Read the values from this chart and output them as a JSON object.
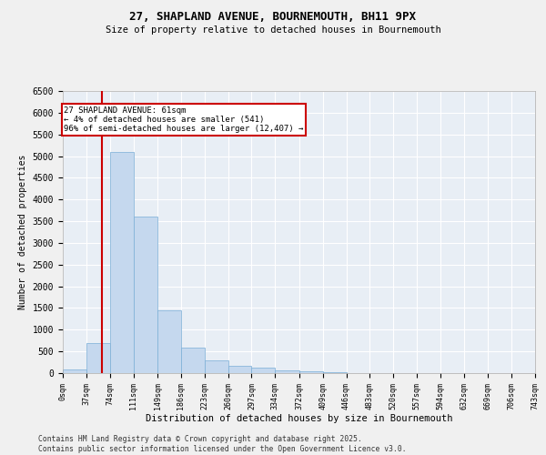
{
  "title1": "27, SHAPLAND AVENUE, BOURNEMOUTH, BH11 9PX",
  "title2": "Size of property relative to detached houses in Bournemouth",
  "xlabel": "Distribution of detached houses by size in Bournemouth",
  "ylabel": "Number of detached properties",
  "bar_color": "#c5d8ee",
  "bar_edge_color": "#7aaed6",
  "bg_color": "#e8eef5",
  "grid_color": "#ffffff",
  "annotation_box_color": "#cc0000",
  "vline_color": "#cc0000",
  "bin_edges": [
    0,
    37,
    74,
    111,
    149,
    186,
    223,
    260,
    297,
    334,
    372,
    409,
    446,
    483,
    520,
    557,
    594,
    632,
    669,
    706,
    743
  ],
  "bar_heights": [
    90,
    700,
    5100,
    3600,
    1450,
    590,
    290,
    160,
    120,
    70,
    45,
    25,
    0,
    0,
    0,
    0,
    0,
    0,
    0,
    0
  ],
  "property_size": 61,
  "annotation_title": "27 SHAPLAND AVENUE: 61sqm",
  "annotation_line1": "← 4% of detached houses are smaller (541)",
  "annotation_line2": "96% of semi-detached houses are larger (12,407) →",
  "ylim": [
    0,
    6500
  ],
  "yticks": [
    0,
    500,
    1000,
    1500,
    2000,
    2500,
    3000,
    3500,
    4000,
    4500,
    5000,
    5500,
    6000,
    6500
  ],
  "footer1": "Contains HM Land Registry data © Crown copyright and database right 2025.",
  "footer2": "Contains public sector information licensed under the Open Government Licence v3.0."
}
